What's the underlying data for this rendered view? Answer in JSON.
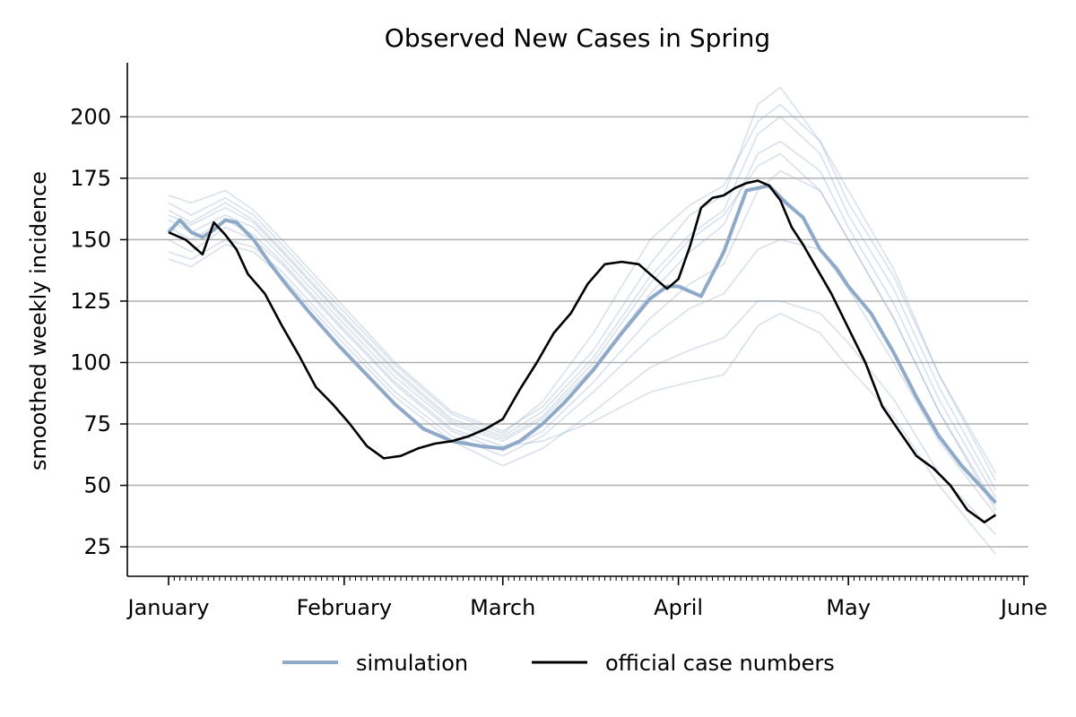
{
  "chart_data": {
    "type": "line",
    "title": "Observed New Cases in Spring",
    "xlabel": "",
    "ylabel": "smoothed weekly incidence",
    "x_tick_labels": [
      "January",
      "February",
      "March",
      "April",
      "May",
      "June"
    ],
    "x_tick_days": [
      0,
      31,
      59,
      90,
      120,
      151
    ],
    "ylim": [
      13,
      222
    ],
    "y_ticks": [
      25,
      50,
      75,
      100,
      125,
      150,
      175,
      200
    ],
    "grid": "horizontal",
    "legend_position": "bottom-center",
    "colors": {
      "simulation": "#8faac8",
      "official": "#000000",
      "grid": "#b0b0b0"
    },
    "series": [
      {
        "name": "simulation",
        "role": "simulation-mean",
        "x": [
          0,
          2,
          4,
          6,
          8,
          10,
          12,
          15,
          18,
          21,
          25,
          30,
          35,
          40,
          45,
          50,
          55,
          59,
          62,
          66,
          70,
          75,
          80,
          85,
          88,
          90,
          94,
          98,
          102,
          106,
          109,
          112,
          115,
          118,
          120,
          124,
          128,
          132,
          136,
          140,
          144,
          146
        ],
        "y": [
          153,
          158,
          153,
          151,
          154,
          158,
          157,
          150,
          140,
          131,
          120,
          107,
          95,
          83,
          73,
          68,
          66,
          65,
          68,
          75,
          84,
          97,
          112,
          126,
          131,
          131,
          127,
          145,
          170,
          172,
          165,
          159,
          146,
          138,
          131,
          120,
          104,
          86,
          70,
          58,
          48,
          43
        ]
      },
      {
        "role": "simulation-run",
        "x": [
          0,
          4,
          10,
          15,
          20,
          30,
          40,
          50,
          59,
          66,
          75,
          85,
          92,
          98,
          104,
          108,
          115,
          120,
          128,
          136,
          146
        ],
        "y": [
          168,
          165,
          170,
          162,
          150,
          125,
          100,
          80,
          72,
          82,
          105,
          140,
          160,
          168,
          205,
          212,
          190,
          165,
          135,
          95,
          52
        ]
      },
      {
        "role": "simulation-run",
        "x": [
          0,
          4,
          10,
          15,
          20,
          30,
          40,
          50,
          59,
          66,
          75,
          85,
          92,
          98,
          104,
          108,
          115,
          120,
          128,
          136,
          146
        ],
        "y": [
          162,
          157,
          165,
          158,
          146,
          121,
          97,
          77,
          70,
          80,
          102,
          135,
          152,
          162,
          193,
          200,
          185,
          160,
          130,
          90,
          48
        ]
      },
      {
        "role": "simulation-run",
        "x": [
          0,
          4,
          10,
          15,
          20,
          30,
          40,
          50,
          59,
          66,
          75,
          85,
          92,
          98,
          104,
          108,
          115,
          120,
          128,
          136,
          146
        ],
        "y": [
          158,
          153,
          160,
          155,
          143,
          118,
          94,
          75,
          68,
          77,
          98,
          128,
          145,
          156,
          185,
          190,
          178,
          155,
          124,
          85,
          45
        ]
      },
      {
        "role": "simulation-run",
        "x": [
          0,
          4,
          10,
          15,
          20,
          30,
          40,
          50,
          59,
          66,
          75,
          85,
          92,
          98,
          104,
          108,
          115,
          120,
          128,
          136,
          146
        ],
        "y": [
          150,
          145,
          155,
          150,
          140,
          115,
          91,
          72,
          64,
          72,
          92,
          118,
          132,
          140,
          170,
          178,
          170,
          150,
          118,
          80,
          42
        ]
      },
      {
        "role": "simulation-run",
        "x": [
          0,
          4,
          10,
          15,
          20,
          30,
          40,
          50,
          59,
          66,
          75,
          85,
          92,
          98,
          104,
          108,
          115,
          120,
          128,
          136,
          146
        ],
        "y": [
          145,
          142,
          150,
          147,
          137,
          112,
          88,
          70,
          62,
          70,
          88,
          110,
          122,
          128,
          146,
          150,
          146,
          130,
          100,
          68,
          38
        ]
      },
      {
        "role": "simulation-run",
        "x": [
          0,
          4,
          10,
          15,
          20,
          30,
          40,
          50,
          59,
          66,
          75,
          85,
          92,
          98,
          104,
          108,
          115,
          120,
          128,
          136,
          146
        ],
        "y": [
          142,
          139,
          148,
          145,
          135,
          110,
          86,
          68,
          58,
          65,
          80,
          98,
          105,
          110,
          125,
          125,
          120,
          108,
          85,
          55,
          30
        ]
      },
      {
        "role": "simulation-run",
        "x": [
          0,
          4,
          10,
          15,
          20,
          30,
          40,
          50,
          59,
          66,
          75,
          85,
          92,
          98,
          104,
          108,
          115,
          120,
          128,
          136,
          146
        ],
        "y": [
          155,
          150,
          158,
          152,
          141,
          116,
          92,
          73,
          66,
          68,
          76,
          88,
          92,
          95,
          115,
          120,
          112,
          98,
          78,
          50,
          22
        ]
      },
      {
        "role": "simulation-run",
        "x": [
          0,
          4,
          10,
          15,
          20,
          30,
          40,
          50,
          59,
          66,
          75,
          85,
          92,
          98,
          104,
          108,
          115,
          120,
          128,
          136,
          146
        ],
        "y": [
          160,
          156,
          163,
          157,
          145,
          120,
          96,
          76,
          69,
          78,
          100,
          132,
          150,
          160,
          180,
          185,
          170,
          150,
          118,
          80,
          40
        ]
      },
      {
        "role": "simulation-run",
        "x": [
          0,
          4,
          10,
          15,
          20,
          30,
          40,
          50,
          59,
          66,
          75,
          85,
          92,
          98,
          104,
          108,
          115,
          120,
          128,
          136,
          146
        ],
        "y": [
          165,
          160,
          167,
          160,
          148,
          123,
          99,
          79,
          71,
          84,
          112,
          150,
          164,
          172,
          198,
          205,
          190,
          170,
          138,
          95,
          55
        ]
      },
      {
        "name": "official case numbers",
        "role": "official",
        "x": [
          0,
          3,
          6,
          8,
          10,
          12,
          14,
          17,
          20,
          23,
          26,
          29,
          32,
          35,
          38,
          41,
          44,
          47,
          50,
          53,
          56,
          59,
          62,
          65,
          68,
          71,
          74,
          77,
          80,
          83,
          86,
          88,
          90,
          92,
          94,
          96,
          98,
          100,
          102,
          104,
          106,
          108,
          110,
          112,
          114,
          117,
          120,
          123,
          126,
          129,
          132,
          135,
          138,
          141,
          144,
          146
        ],
        "y": [
          153,
          150,
          144,
          157,
          152,
          146,
          136,
          128,
          115,
          103,
          90,
          83,
          75,
          66,
          61,
          62,
          65,
          67,
          68,
          70,
          73,
          77,
          89,
          100,
          112,
          120,
          132,
          140,
          141,
          140,
          134,
          130,
          134,
          147,
          163,
          167,
          168,
          171,
          173,
          174,
          172,
          166,
          155,
          148,
          140,
          128,
          114,
          100,
          82,
          72,
          62,
          57,
          50,
          40,
          35,
          38
        ]
      }
    ]
  }
}
